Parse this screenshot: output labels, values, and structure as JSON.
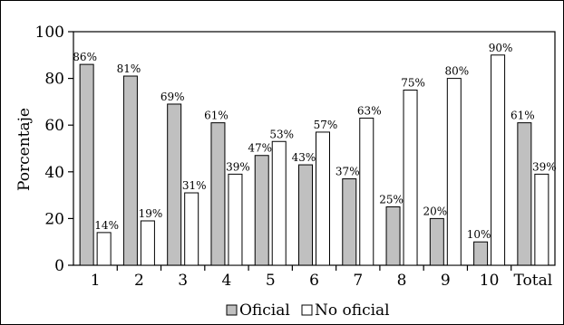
{
  "chart_data": {
    "type": "bar",
    "title": "",
    "xlabel": "",
    "ylabel": "Porcentaje",
    "ylim": [
      0,
      100
    ],
    "yticks": [
      "0",
      "20",
      "40",
      "60",
      "80",
      "100"
    ],
    "categories": [
      "1",
      "2",
      "3",
      "4",
      "5",
      "6",
      "7",
      "8",
      "9",
      "10",
      "Total"
    ],
    "series": [
      {
        "name": "Oficial",
        "color": "#c0c0c0",
        "values": [
          86,
          81,
          69,
          61,
          47,
          43,
          37,
          25,
          20,
          10,
          61
        ],
        "labels": [
          "86%",
          "81%",
          "69%",
          "61%",
          "47%",
          "43%",
          "37%",
          "25%",
          "20%",
          "10%",
          "61%"
        ]
      },
      {
        "name": "No oficial",
        "color": "#ffffff",
        "values": [
          14,
          19,
          31,
          39,
          53,
          57,
          63,
          75,
          80,
          90,
          39
        ],
        "labels": [
          "14%",
          "19%",
          "31%",
          "39%",
          "53%",
          "57%",
          "63%",
          "75%",
          "80%",
          "90%",
          "39%"
        ]
      }
    ],
    "grid": false,
    "legend": "bottom"
  }
}
